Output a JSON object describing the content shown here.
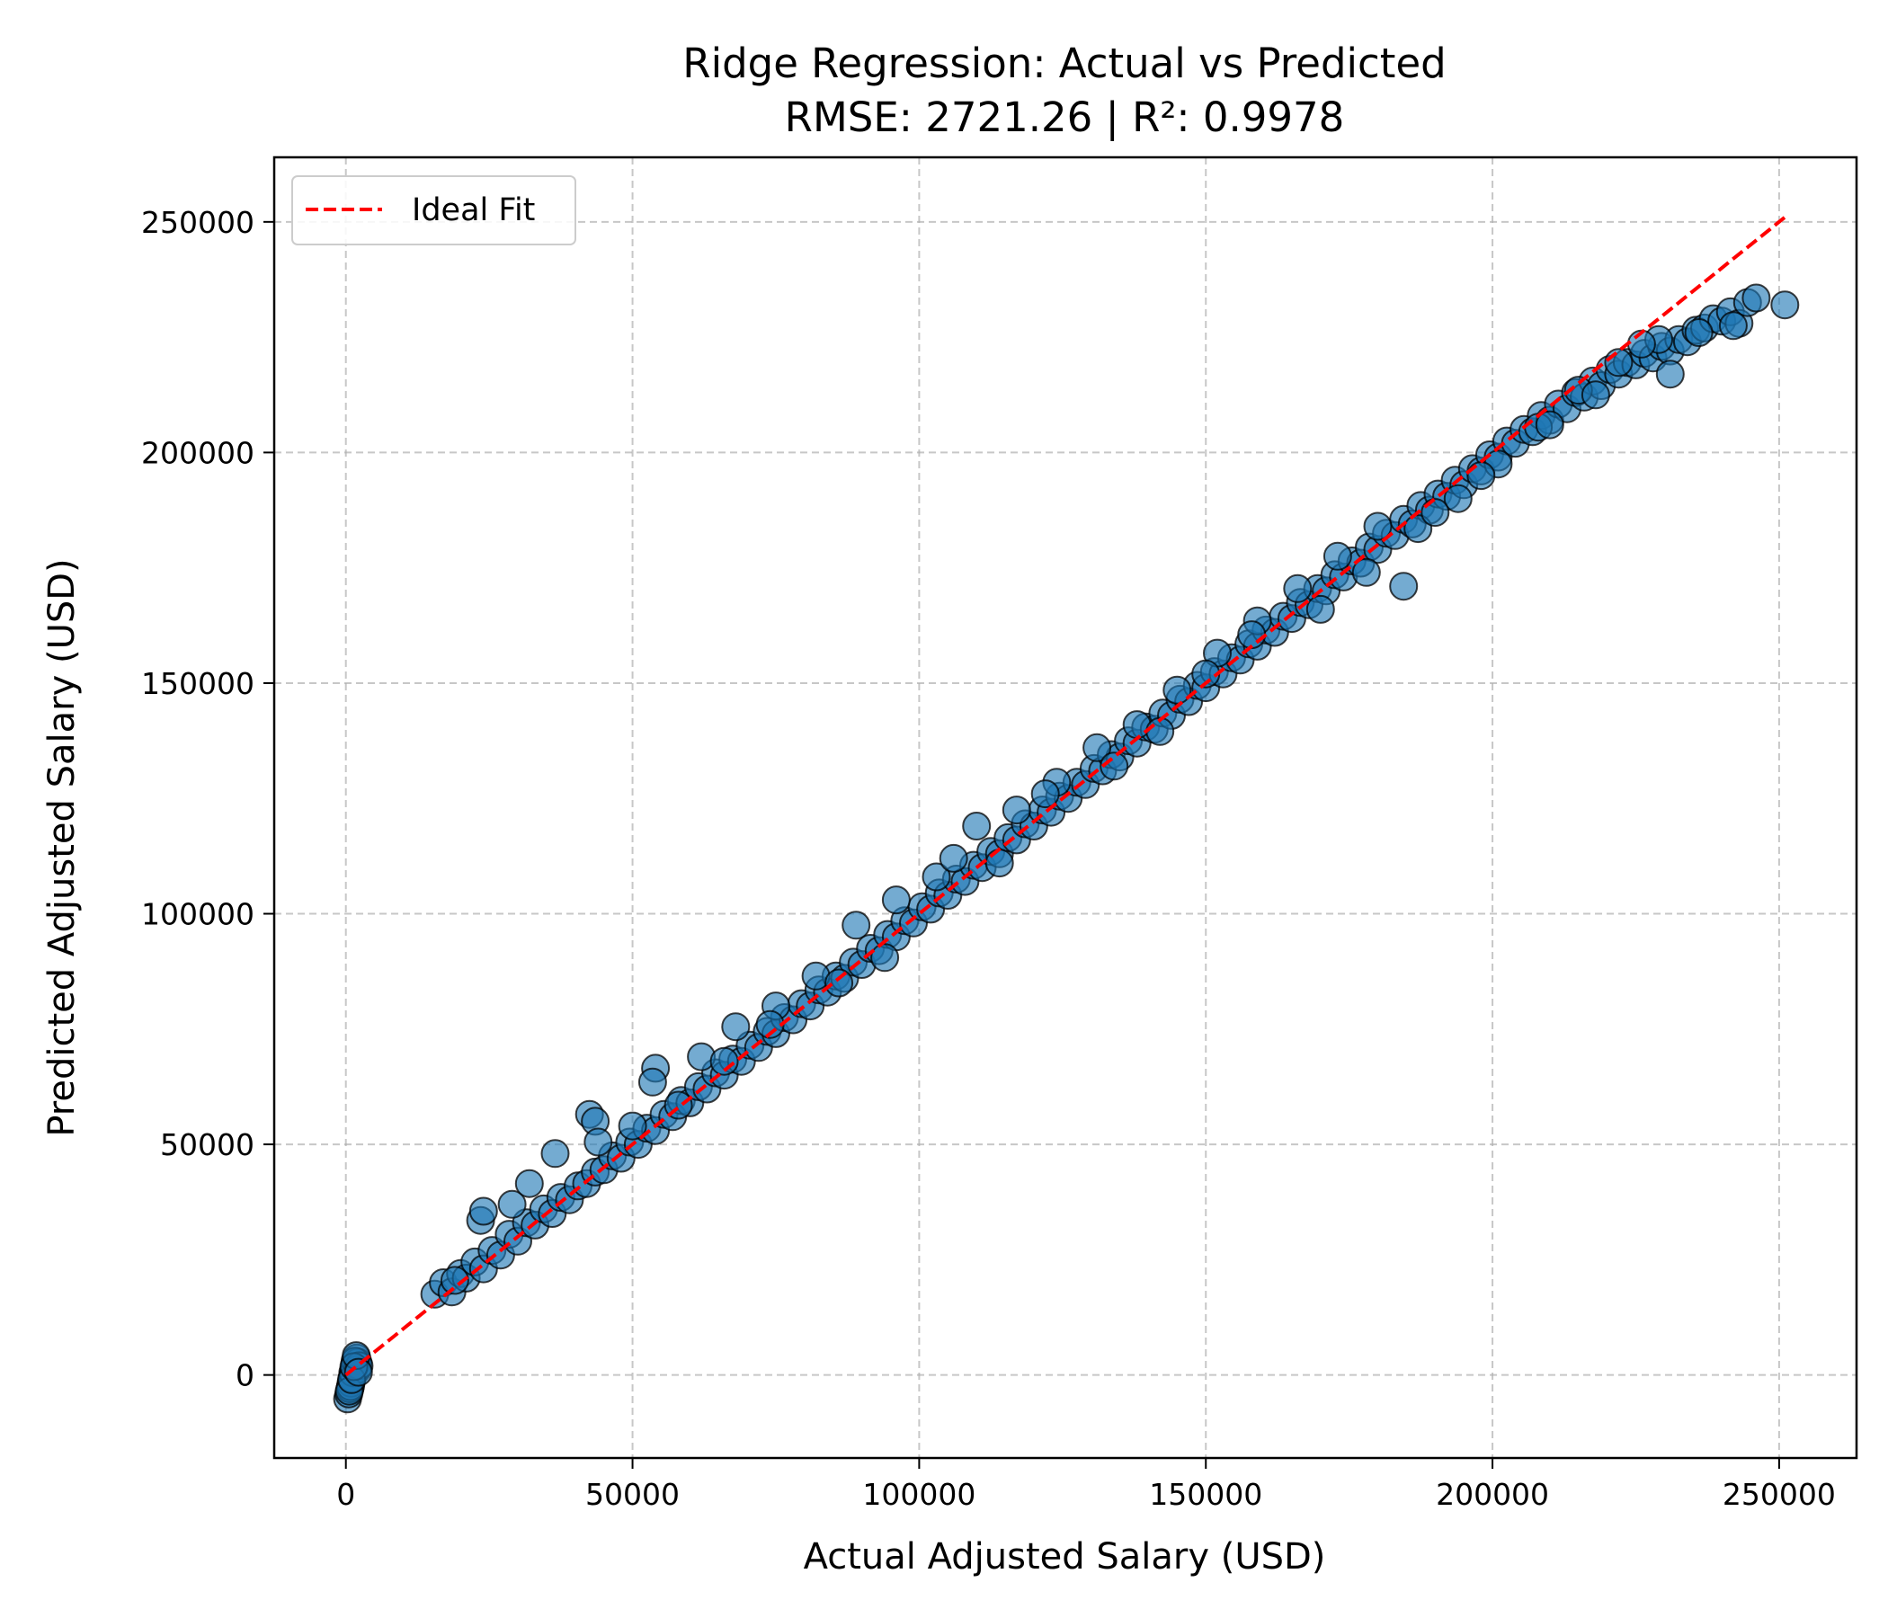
{
  "chart_data": {
    "type": "scatter",
    "title": "Ridge Regression: Actual vs Predicted",
    "subtitle": "RMSE: 2721.26 | R²: 0.9978",
    "xlabel": "Actual Adjusted Salary (USD)",
    "ylabel": "Predicted Adjusted Salary (USD)",
    "xlim": [
      -12500,
      263500
    ],
    "ylim": [
      -18000,
      264000
    ],
    "xticks": [
      0,
      50000,
      100000,
      150000,
      200000,
      250000
    ],
    "yticks": [
      0,
      50000,
      100000,
      150000,
      200000,
      250000
    ],
    "grid": true,
    "legend": {
      "placement": "top-left",
      "entries": [
        "Ideal Fit"
      ]
    },
    "colors": {
      "points": "#1f77b4",
      "ideal_line": "#ff0000"
    },
    "ideal_fit": {
      "name": "Ideal Fit",
      "x": [
        0,
        251000
      ],
      "y": [
        0,
        251000
      ]
    },
    "series": [
      {
        "x": [
          300,
          500,
          700,
          900,
          1100,
          1300,
          1500,
          1700,
          1900,
          2100,
          800,
          1200,
          1600,
          2000,
          2300,
          600,
          1000,
          1400,
          1800,
          2200,
          15500,
          17000,
          18500,
          20000,
          21000,
          22500,
          24000,
          25500,
          27000,
          28500,
          30000,
          31500,
          33000,
          34500,
          36000,
          37500,
          39000,
          40500,
          42000,
          43500,
          45000,
          46500,
          48000,
          49500,
          51000,
          52500,
          54000,
          55500,
          57000,
          58500,
          60000,
          61500,
          63000,
          64500,
          66000,
          67500,
          69000,
          70500,
          72000,
          73500,
          75000,
          76500,
          78000,
          79500,
          81000,
          82500,
          84000,
          85500,
          87000,
          88500,
          90000,
          91500,
          93000,
          94500,
          96000,
          97500,
          99000,
          100500,
          102000,
          103500,
          105000,
          106500,
          108000,
          109500,
          111000,
          112500,
          114000,
          115500,
          117000,
          118500,
          120000,
          121500,
          123000,
          124500,
          126000,
          127500,
          129000,
          130500,
          132000,
          133500,
          135000,
          136500,
          138000,
          139500,
          141000,
          142500,
          144000,
          145500,
          147000,
          148500,
          150000,
          151500,
          153000,
          154500,
          156000,
          157500,
          159000,
          160500,
          162000,
          163500,
          165000,
          166500,
          168000,
          169500,
          171000,
          172500,
          174000,
          175500,
          177000,
          178500,
          180000,
          181500,
          183000,
          184500,
          186000,
          187500,
          189000,
          190500,
          192000,
          193500,
          195000,
          196500,
          198000,
          199500,
          201000,
          202500,
          204000,
          205500,
          207000,
          208500,
          210000,
          211500,
          213000,
          214500,
          216000,
          217500,
          219000,
          220500,
          222000,
          223500,
          225000,
          226500,
          228000,
          229500,
          231000,
          232500,
          234000,
          235500,
          237000,
          238500,
          240000,
          241500,
          243000,
          244500,
          246000,
          251000,
          19000,
          23500,
          24000,
          29000,
          32000,
          36500,
          42500,
          43500,
          54000,
          53500,
          62000,
          68000,
          75000,
          82000,
          89000,
          96000,
          103000,
          110000,
          117000,
          124000,
          131000,
          138000,
          145000,
          152000,
          159000,
          166000,
          173000,
          180000,
          184500,
          187000,
          194000,
          201000,
          208000,
          215000,
          222000,
          229000,
          231000,
          236000,
          242000,
          44000,
          50000,
          58000,
          66000,
          74000,
          86000,
          94000,
          106000,
          114000,
          122000,
          134000,
          142000,
          150000,
          158000,
          170000,
          178000,
          190000,
          198000,
          210000,
          218000,
          226000
        ],
        "y": [
          -5200,
          -4100,
          -3000,
          -1800,
          -700,
          400,
          1500,
          2600,
          3700,
          2800,
          -2500,
          500,
          3000,
          1200,
          2000,
          -3500,
          -1000,
          1800,
          4200,
          600,
          17500,
          20000,
          18000,
          22000,
          21000,
          24500,
          23000,
          27000,
          26000,
          30500,
          29000,
          33000,
          32500,
          36000,
          35000,
          38500,
          38000,
          41000,
          41500,
          44000,
          44500,
          47500,
          47000,
          50500,
          50000,
          53500,
          53000,
          56500,
          56000,
          59500,
          59000,
          62500,
          62000,
          65500,
          65000,
          68500,
          68000,
          71500,
          71000,
          74500,
          74000,
          77500,
          77000,
          80500,
          80000,
          83500,
          83000,
          86500,
          86000,
          89500,
          89000,
          92500,
          92000,
          95500,
          95000,
          98500,
          98000,
          101500,
          101000,
          104500,
          104000,
          107500,
          107000,
          110500,
          110000,
          113500,
          113000,
          116500,
          116000,
          119500,
          119000,
          122500,
          122000,
          125500,
          125000,
          128500,
          128000,
          131500,
          131000,
          134500,
          134000,
          137500,
          137000,
          140500,
          140000,
          143500,
          143000,
          146500,
          146000,
          149500,
          149000,
          152500,
          152000,
          155500,
          155000,
          158500,
          158000,
          161500,
          161000,
          164500,
          164000,
          167500,
          167000,
          170500,
          170000,
          173500,
          173000,
          176500,
          176000,
          179500,
          179000,
          182500,
          182000,
          185500,
          184500,
          188500,
          187500,
          191000,
          190500,
          194000,
          193000,
          196500,
          196000,
          199500,
          199000,
          202500,
          202000,
          205000,
          204500,
          208000,
          207000,
          210500,
          209500,
          213000,
          212000,
          215500,
          214500,
          218000,
          217000,
          219500,
          219000,
          221500,
          220500,
          223000,
          222000,
          224500,
          224000,
          226500,
          227000,
          229000,
          228500,
          230500,
          228000,
          232500,
          233500,
          232000,
          20500,
          33500,
          35500,
          37000,
          41500,
          48000,
          56500,
          55000,
          66500,
          63500,
          69000,
          75500,
          80000,
          86500,
          97500,
          103000,
          108000,
          119000,
          122500,
          128500,
          136000,
          141000,
          148500,
          156500,
          163500,
          170500,
          177500,
          184000,
          171000,
          183500,
          190000,
          197500,
          205500,
          213500,
          219500,
          224500,
          217000,
          226000,
          227500,
          50500,
          54000,
          58500,
          68000,
          76000,
          85000,
          90500,
          112000,
          111000,
          126000,
          132000,
          139500,
          152000,
          160500,
          166000,
          174000,
          187000,
          195000,
          206000,
          212500,
          223500
        ]
      }
    ]
  }
}
